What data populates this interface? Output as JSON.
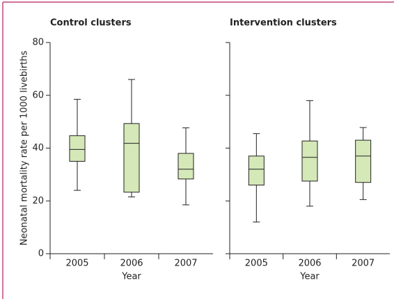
{
  "chart_data": [
    {
      "type": "box",
      "title": "Control clusters",
      "ylabel": "Neonatal mortality rate per 1000 livebirths",
      "xlabel": "Year",
      "categories": [
        "2005",
        "2006",
        "2007"
      ],
      "color": "#d5e8b8",
      "stats": [
        {
          "whislo": 24,
          "q1": 35,
          "med": 39.5,
          "q3": 44.7,
          "whishi": 58.5
        },
        {
          "whislo": 21.5,
          "q1": 23.3,
          "med": 41.8,
          "q3": 49.3,
          "whishi": 66
        },
        {
          "whislo": 18.5,
          "q1": 28.3,
          "med": 32,
          "q3": 38,
          "whishi": 47.7
        }
      ],
      "ylim": [
        0,
        80
      ],
      "yticks": [
        0,
        20,
        40,
        60,
        80
      ],
      "ytick_labels": true
    },
    {
      "type": "box",
      "title": "Intervention clusters",
      "xlabel": "Year",
      "categories": [
        "2005",
        "2006",
        "2007"
      ],
      "color": "#d5e8b8",
      "stats": [
        {
          "whislo": 12,
          "q1": 26,
          "med": 32,
          "q3": 37,
          "whishi": 45.5
        },
        {
          "whislo": 18,
          "q1": 27.5,
          "med": 36.5,
          "q3": 42.7,
          "whishi": 58
        },
        {
          "whislo": 20.5,
          "q1": 27,
          "med": 37,
          "q3": 43,
          "whishi": 47.8
        }
      ],
      "ylim": [
        0,
        80
      ],
      "yticks": [
        0,
        20,
        40,
        60,
        80
      ],
      "ytick_labels": false
    }
  ]
}
